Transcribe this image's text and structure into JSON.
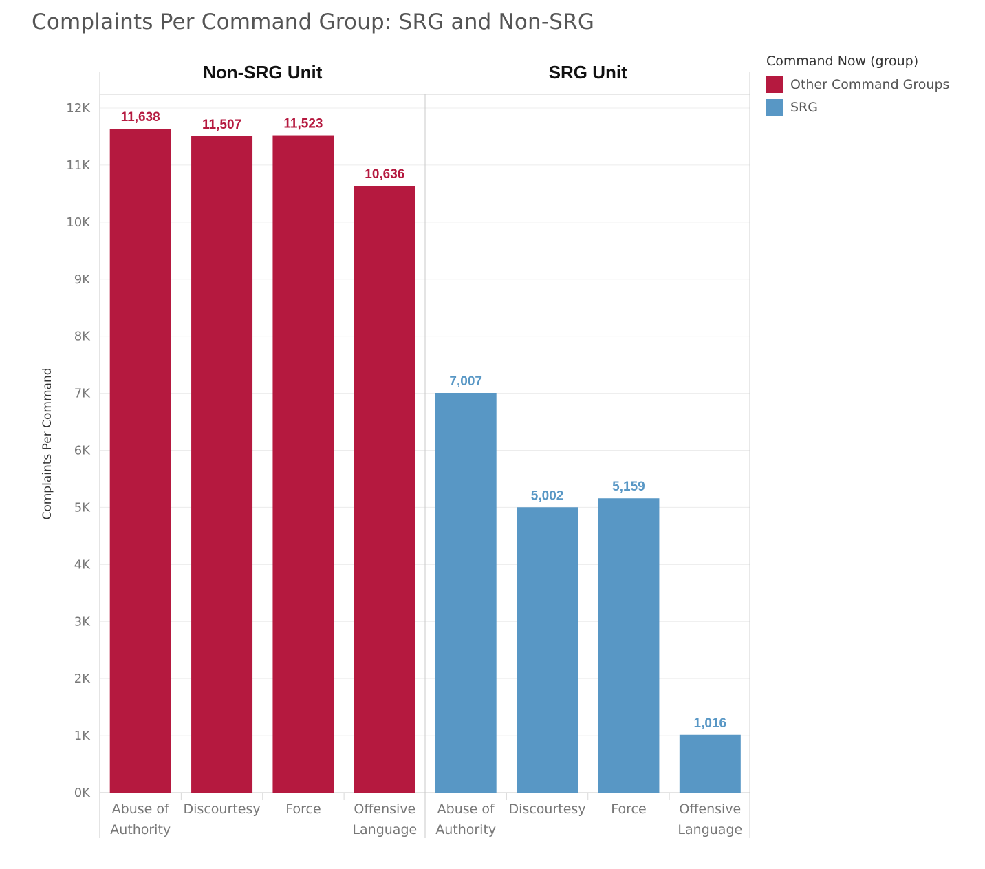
{
  "title": "Complaints Per Command Group: SRG and Non-SRG",
  "legend": {
    "title": "Command Now (group)",
    "items": [
      {
        "label": "Other Command Groups",
        "color": "#b5193f"
      },
      {
        "label": "SRG",
        "color": "#5897c5"
      }
    ]
  },
  "chart_data": {
    "type": "bar",
    "ylabel": "Complaints Per Command",
    "xlabel": "",
    "ylim": [
      0,
      12000
    ],
    "yticks": [
      {
        "value": 0,
        "label": "0K"
      },
      {
        "value": 1000,
        "label": "1K"
      },
      {
        "value": 2000,
        "label": "2K"
      },
      {
        "value": 3000,
        "label": "3K"
      },
      {
        "value": 4000,
        "label": "4K"
      },
      {
        "value": 5000,
        "label": "5K"
      },
      {
        "value": 6000,
        "label": "6K"
      },
      {
        "value": 7000,
        "label": "7K"
      },
      {
        "value": 8000,
        "label": "8K"
      },
      {
        "value": 9000,
        "label": "9K"
      },
      {
        "value": 10000,
        "label": "10K"
      },
      {
        "value": 11000,
        "label": "11K"
      },
      {
        "value": 12000,
        "label": "12K"
      }
    ],
    "grid": true,
    "legend_position": "top-right",
    "panels": [
      {
        "name": "Non-SRG Unit",
        "series": "Other Command Groups",
        "color": "#b5193f",
        "categories": [
          [
            "Abuse of",
            "Authority"
          ],
          [
            "Discourtesy"
          ],
          [
            "Force"
          ],
          [
            "Offensive",
            "Language"
          ]
        ],
        "values": [
          11638,
          11507,
          11523,
          10636
        ],
        "labels": [
          "11,638",
          "11,507",
          "11,523",
          "10,636"
        ]
      },
      {
        "name": "SRG Unit",
        "series": "SRG",
        "color": "#5897c5",
        "categories": [
          [
            "Abuse of",
            "Authority"
          ],
          [
            "Discourtesy"
          ],
          [
            "Force"
          ],
          [
            "Offensive",
            "Language"
          ]
        ],
        "values": [
          7007,
          5002,
          5159,
          1016
        ],
        "labels": [
          "7,007",
          "5,002",
          "5,159",
          "1,016"
        ]
      }
    ]
  }
}
